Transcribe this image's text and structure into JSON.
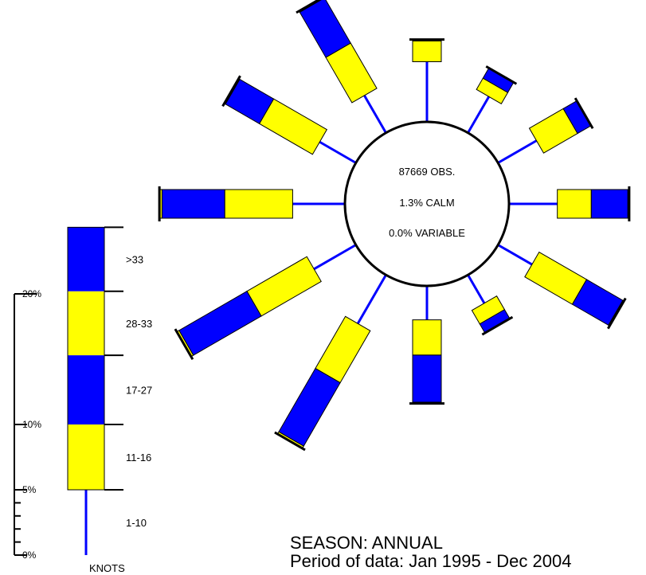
{
  "chart_data": {
    "type": "wind-rose",
    "center": {
      "obs": "87669 OBS.",
      "calm": "1.3% CALM",
      "variable": "0.0% VARIABLE"
    },
    "directions_deg": [
      0,
      30,
      60,
      90,
      120,
      150,
      180,
      210,
      240,
      270,
      300,
      330
    ],
    "speed_bins": [
      {
        "label": "1-10",
        "color": "#0000ff",
        "kind": "line"
      },
      {
        "label": "11-16",
        "color": "#ffff00",
        "kind": "box"
      },
      {
        "label": "17-27",
        "color": "#0000ff",
        "kind": "box"
      },
      {
        "label": "28-33",
        "color": "#ffff00",
        "kind": "box"
      },
      {
        "label": ">33",
        "color": "#0000ff",
        "kind": "box"
      }
    ],
    "series": [
      {
        "name": "1-10",
        "values": [
          4.6,
          3.2,
          3.4,
          3.7,
          3.0,
          2.5,
          2.6,
          4.3,
          3.7,
          4.0,
          3.2,
          3.3
        ]
      },
      {
        "name": "11-16",
        "values": [
          1.6,
          1.0,
          3.0,
          2.6,
          4.2,
          1.2,
          2.7,
          4.6,
          5.3,
          5.2,
          4.7,
          4.0
        ]
      },
      {
        "name": "17-27",
        "values": [
          0.1,
          0.9,
          1.2,
          2.8,
          3.2,
          0.8,
          3.6,
          5.6,
          6.0,
          4.8,
          3.0,
          4.0
        ]
      },
      {
        "name": "28-33",
        "values": [
          0.0,
          0.0,
          0.0,
          0.1,
          0.1,
          0.0,
          0.1,
          0.2,
          0.2,
          0.2,
          0.1,
          0.1
        ]
      },
      {
        "name": ">33",
        "values": [
          0.0,
          0.0,
          0.0,
          0.0,
          0.0,
          0.0,
          0.0,
          0.0,
          0.0,
          0.0,
          0.0,
          0.0
        ]
      }
    ],
    "legend": {
      "tick_labels": [
        "0%",
        "5%",
        "10%",
        "20%"
      ],
      "tick_values": [
        0,
        5,
        10,
        20
      ],
      "segments": [
        {
          "label": "1-10",
          "from": 0,
          "to": 5,
          "color": "#0000ff"
        },
        {
          "label": "11-16",
          "from": 5,
          "to": 10,
          "color": "#ffff00"
        },
        {
          "label": "17-27",
          "from": 10,
          "to": 15.3,
          "color": "#0000ff"
        },
        {
          "label": "28-33",
          "from": 15.3,
          "to": 20.2,
          "color": "#ffff00"
        },
        {
          "label": ">33",
          "from": 20.2,
          "to": 25.1,
          "color": "#0000ff"
        }
      ],
      "units": "KNOTS"
    },
    "season": "SEASON: ANNUAL",
    "period": "Period of data: Jan 1995 - Dec 2004"
  }
}
